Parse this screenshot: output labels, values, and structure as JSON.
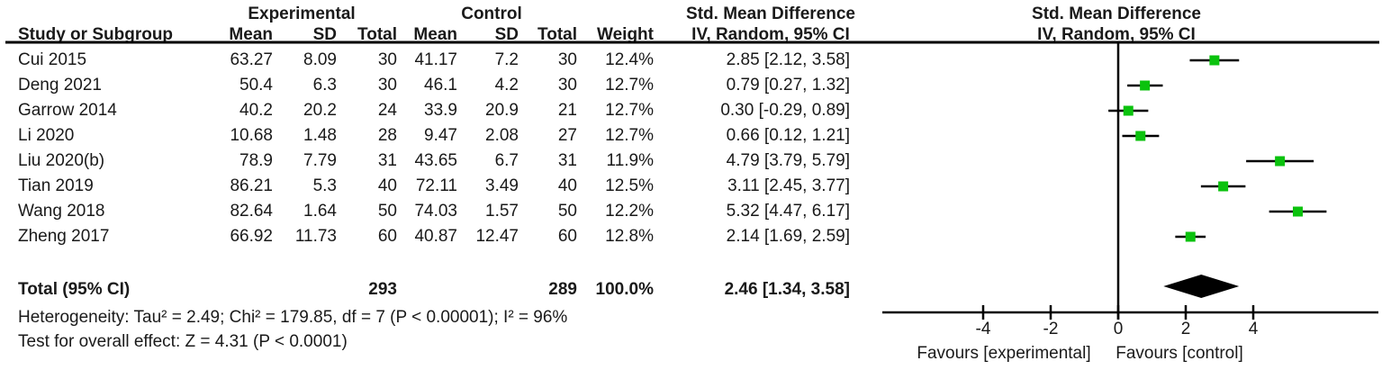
{
  "table": {
    "group_headers": {
      "experimental": "Experimental",
      "control": "Control",
      "smd_text_col": "Std. Mean Difference",
      "smd_plot_col": "Std. Mean Difference"
    },
    "col_headers": {
      "study": "Study or Subgroup",
      "mean": "Mean",
      "sd": "SD",
      "total": "Total",
      "weight": "Weight",
      "iv_text_col": "IV, Random, 95% CI",
      "iv_plot_col": "IV, Random, 95% CI"
    },
    "total_row": {
      "label": "Total (95% CI)",
      "exp_total": "293",
      "ctl_total": "289",
      "weight": "100.0%",
      "ci_text": "2.46 [1.34, 3.58]"
    },
    "heterogeneity": "Heterogeneity: Tau² = 2.49; Chi² = 179.85, df = 7 (P < 0.00001); I² = 96%",
    "overall_effect": "Test for overall effect: Z = 4.31 (P < 0.0001)"
  },
  "chart_data": {
    "type": "forest",
    "title": "Std. Mean Difference, IV, Random, 95% CI",
    "rows": [
      {
        "study": "Cui 2015",
        "mean1": "63.27",
        "sd1": "8.09",
        "n1": "30",
        "mean2": "41.17",
        "sd2": "7.2",
        "n2": "30",
        "weight": "12.4%",
        "ci_text": "2.85 [2.12, 3.58]",
        "est": 2.85,
        "lo": 2.12,
        "hi": 3.58
      },
      {
        "study": "Deng 2021",
        "mean1": "50.4",
        "sd1": "6.3",
        "n1": "30",
        "mean2": "46.1",
        "sd2": "4.2",
        "n2": "30",
        "weight": "12.7%",
        "ci_text": "0.79 [0.27, 1.32]",
        "est": 0.79,
        "lo": 0.27,
        "hi": 1.32
      },
      {
        "study": "Garrow 2014",
        "mean1": "40.2",
        "sd1": "20.2",
        "n1": "24",
        "mean2": "33.9",
        "sd2": "20.9",
        "n2": "21",
        "weight": "12.7%",
        "ci_text": "0.30 [-0.29, 0.89]",
        "est": 0.3,
        "lo": -0.29,
        "hi": 0.89
      },
      {
        "study": "Li 2020",
        "mean1": "10.68",
        "sd1": "1.48",
        "n1": "28",
        "mean2": "9.47",
        "sd2": "2.08",
        "n2": "27",
        "weight": "12.7%",
        "ci_text": "0.66 [0.12, 1.21]",
        "est": 0.66,
        "lo": 0.12,
        "hi": 1.21
      },
      {
        "study": "Liu 2020(b)",
        "mean1": "78.9",
        "sd1": "7.79",
        "n1": "31",
        "mean2": "43.65",
        "sd2": "6.7",
        "n2": "31",
        "weight": "11.9%",
        "ci_text": "4.79 [3.79, 5.79]",
        "est": 4.79,
        "lo": 3.79,
        "hi": 5.79
      },
      {
        "study": "Tian 2019",
        "mean1": "86.21",
        "sd1": "5.3",
        "n1": "40",
        "mean2": "72.11",
        "sd2": "3.49",
        "n2": "40",
        "weight": "12.5%",
        "ci_text": "3.11 [2.45, 3.77]",
        "est": 3.11,
        "lo": 2.45,
        "hi": 3.77
      },
      {
        "study": "Wang 2018",
        "mean1": "82.64",
        "sd1": "1.64",
        "n1": "50",
        "mean2": "74.03",
        "sd2": "1.57",
        "n2": "50",
        "weight": "12.2%",
        "ci_text": "5.32 [4.47, 6.17]",
        "est": 5.32,
        "lo": 4.47,
        "hi": 6.17
      },
      {
        "study": "Zheng 2017",
        "mean1": "66.92",
        "sd1": "11.73",
        "n1": "60",
        "mean2": "40.87",
        "sd2": "12.47",
        "n2": "60",
        "weight": "12.8%",
        "ci_text": "2.14 [1.69, 2.59]",
        "est": 2.14,
        "lo": 1.69,
        "hi": 2.59
      }
    ],
    "total": {
      "est": 2.46,
      "lo": 1.34,
      "hi": 3.58
    },
    "axis": {
      "ticks": [
        -4,
        -2,
        0,
        2,
        4
      ],
      "xlim": [
        -7,
        7.7
      ],
      "grid": false
    },
    "favours_left": "Favours [experimental]",
    "favours_right": "Favours [control]",
    "marker_color": "#0bc20e",
    "diamond_color": "#000000",
    "line_color": "#000000"
  }
}
